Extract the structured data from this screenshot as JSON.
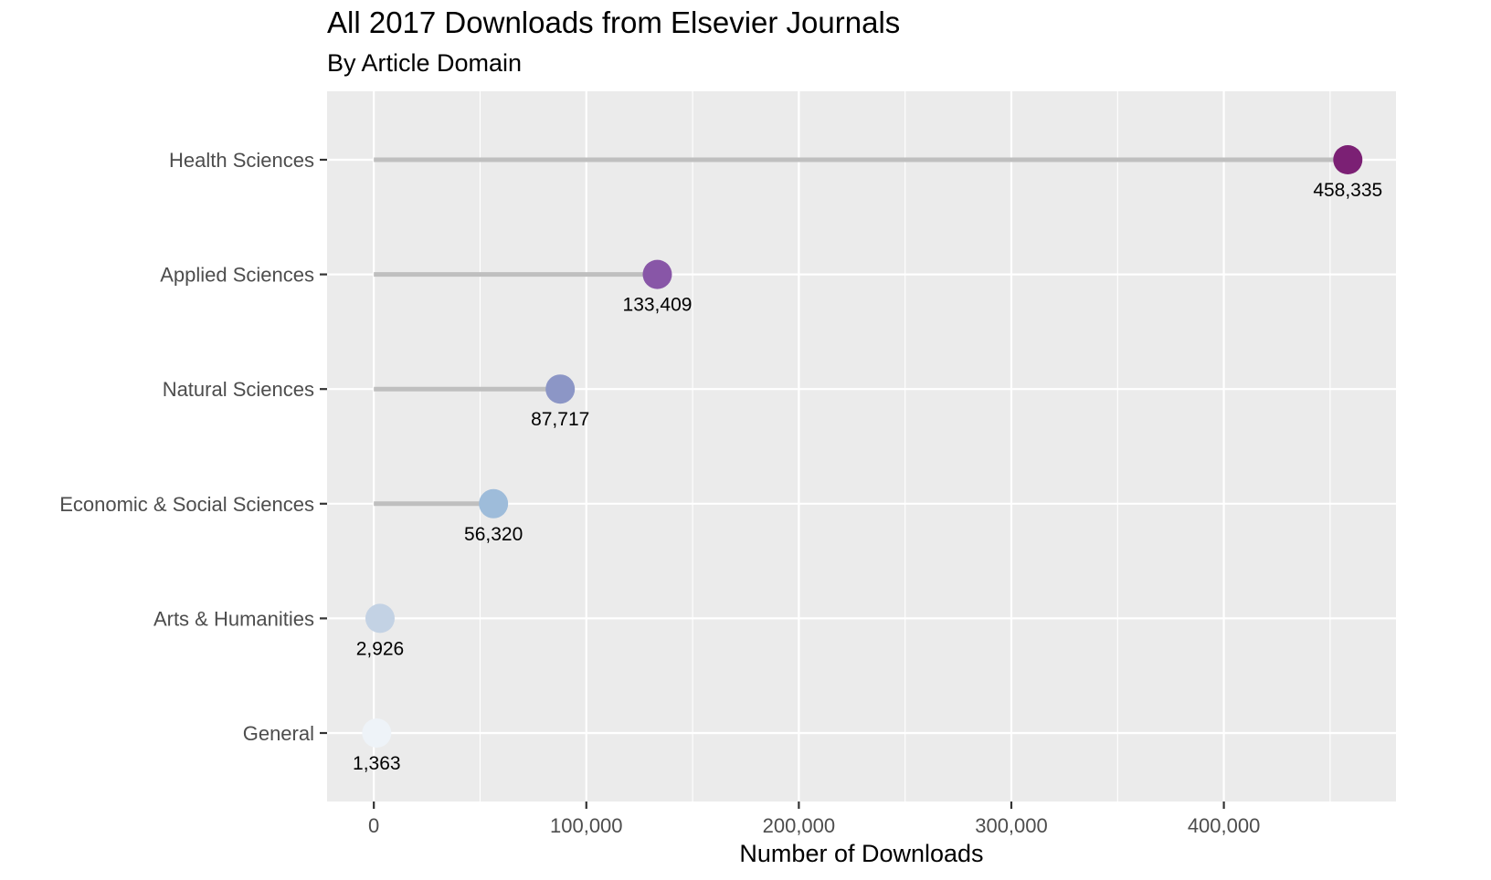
{
  "chart_data": {
    "type": "lollipop",
    "title": "All 2017 Downloads from Elsevier Journals",
    "subtitle": "By Article Domain",
    "xlabel": "Number of Downloads",
    "ylabel": "",
    "xlim": [
      -22000,
      481000
    ],
    "x_ticks": [
      0,
      100000,
      200000,
      300000,
      400000
    ],
    "x_tick_labels": [
      "0",
      "100,000",
      "200,000",
      "300,000",
      "400,000"
    ],
    "grid": true,
    "legend": "none",
    "categories": [
      "Health Sciences",
      "Applied Sciences",
      "Natural Sciences",
      "Economic & Social Sciences",
      "Arts & Humanities",
      "General"
    ],
    "values": [
      458335,
      133409,
      87717,
      56320,
      2926,
      1363
    ],
    "value_labels": [
      "458,335",
      "133,409",
      "87,717",
      "56,320",
      "2,926",
      "1,363"
    ],
    "point_colors": [
      "#7b2074",
      "#8856a7",
      "#8c96c6",
      "#9ebcda",
      "#c3d2e4",
      "#eef3f8"
    ],
    "colors": {
      "panel_background": "#ebebeb",
      "grid_line": "#ffffff",
      "segment": "#bfbfbf"
    }
  }
}
